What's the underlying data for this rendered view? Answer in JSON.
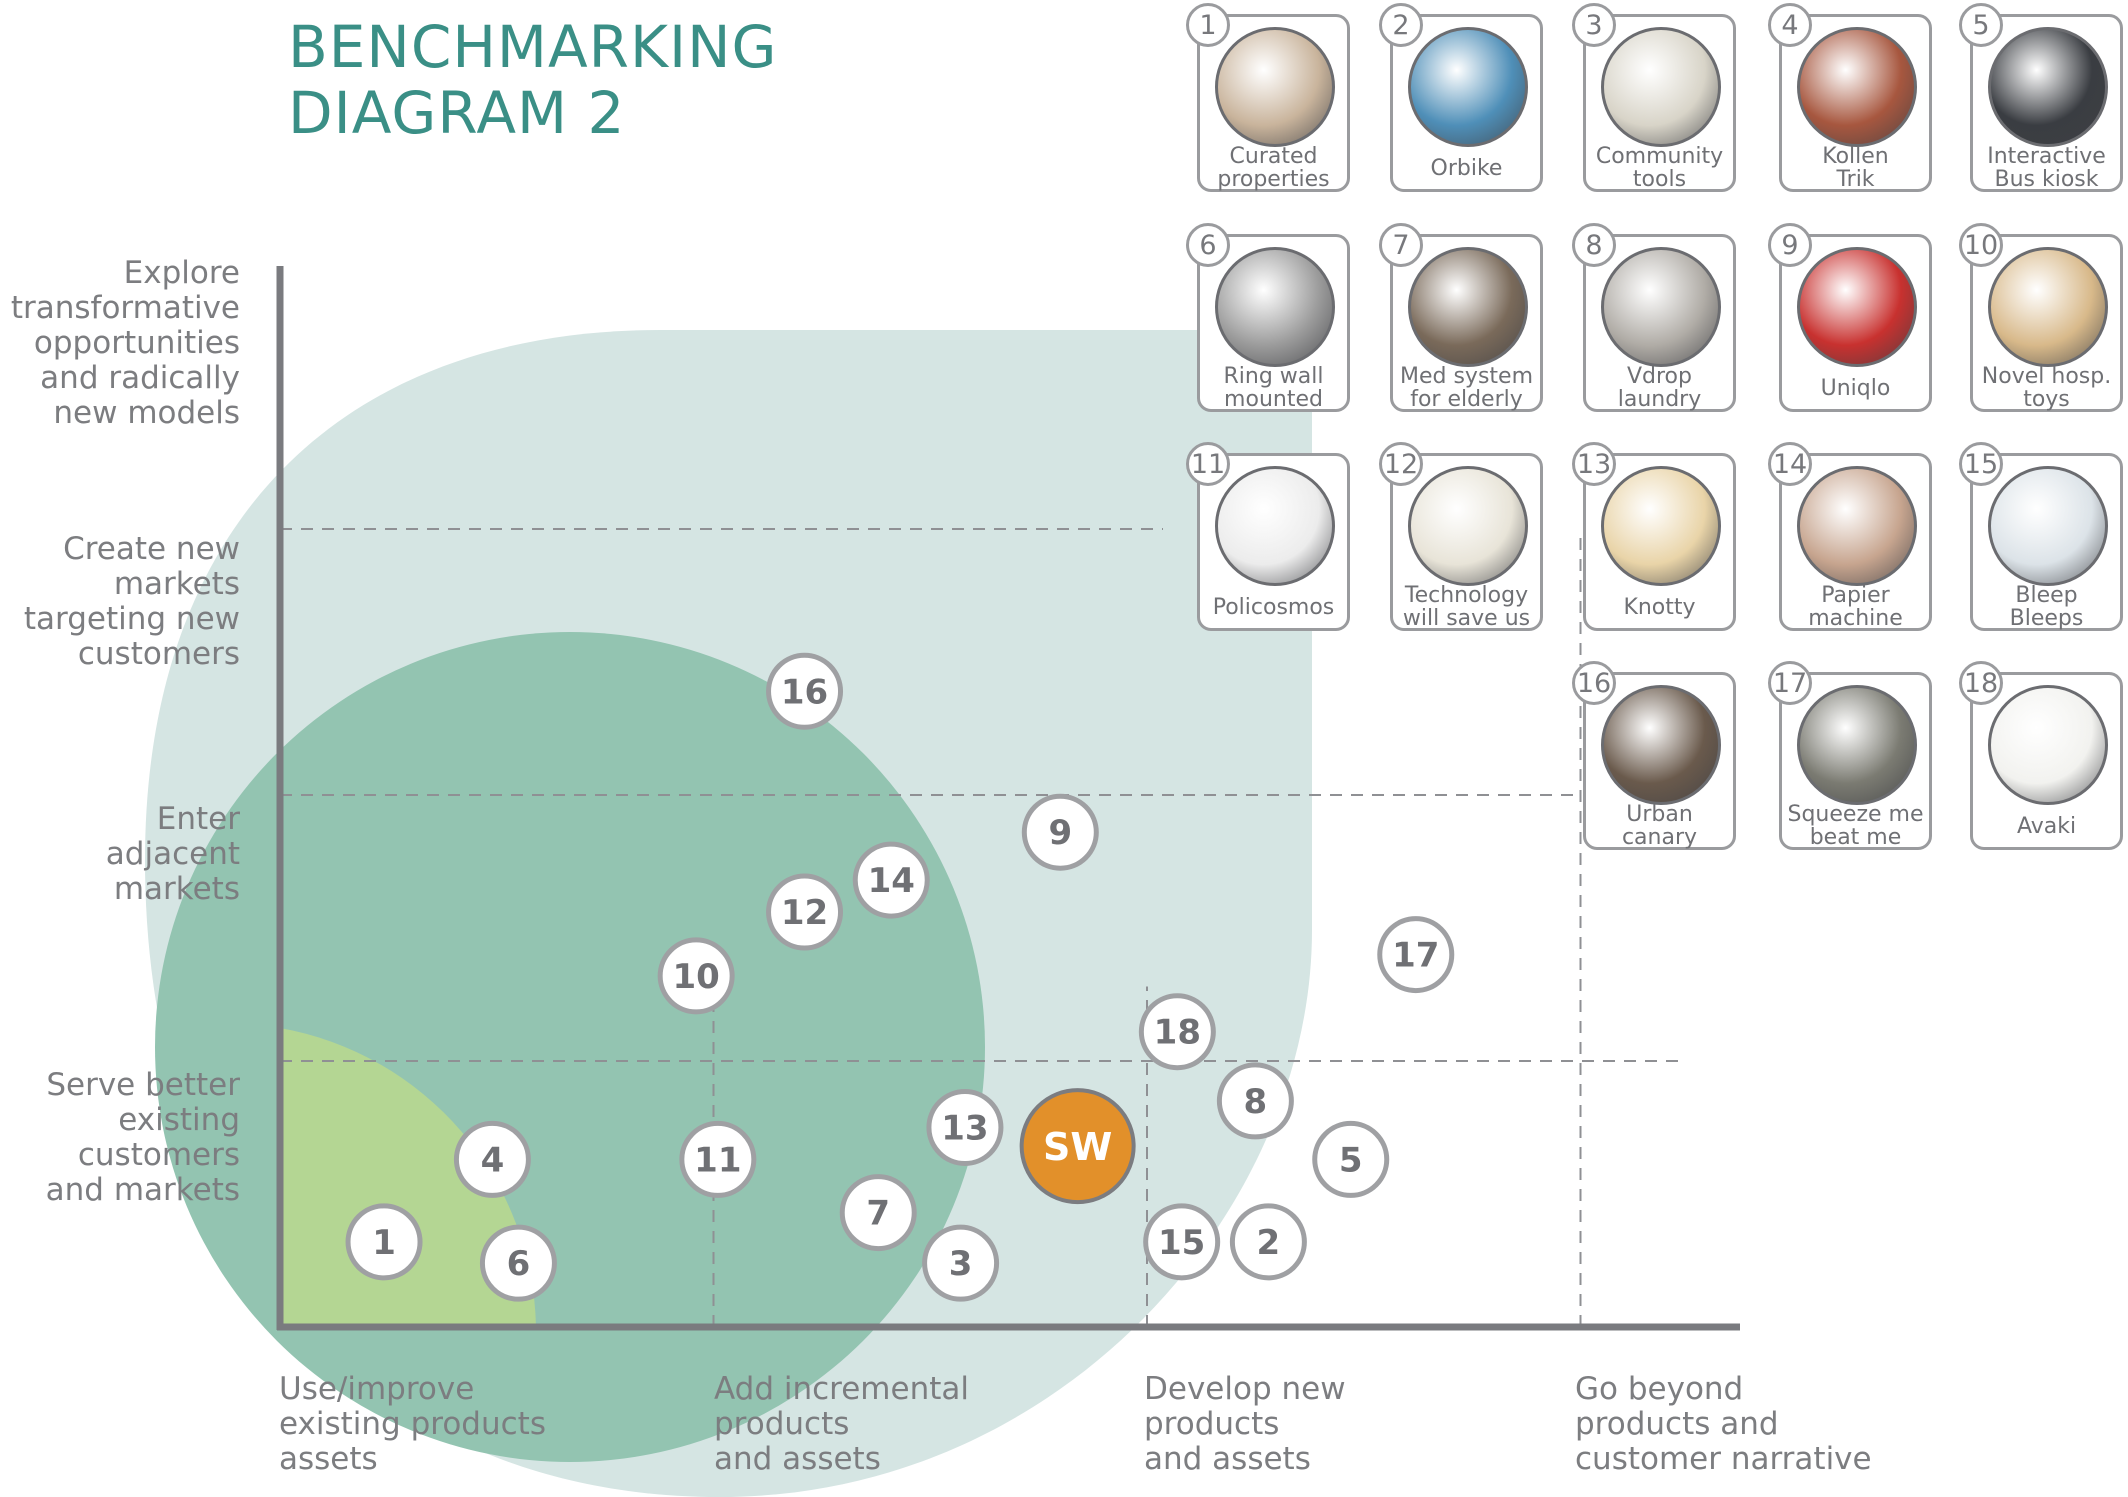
{
  "header": {
    "title_line1": "BENCHMARKING",
    "title_line2": "DIAGRAM 2"
  },
  "colors": {
    "title": "#3a8f86",
    "outer_region": "#d5e5e3",
    "middle_region": "#93c4b1",
    "inner_region": "#b4d693",
    "axis": "#7a7b7f",
    "grid": "#8f9094",
    "marker_border": "#9fa0a3",
    "marker_text": "#6f7074",
    "sw_fill": "#e2902a",
    "sw_border": "#7b7c80"
  },
  "y_axis": {
    "levels": [
      {
        "lines": [
          "Serve better",
          "existing",
          "customers",
          "and markets"
        ]
      },
      {
        "lines": [
          "Enter",
          "adjacent",
          "markets"
        ]
      },
      {
        "lines": [
          "Create new",
          "markets",
          "targeting new",
          "customers"
        ]
      },
      {
        "lines": [
          "Explore",
          "transformative",
          "opportunities",
          "and radically",
          "new models"
        ]
      }
    ]
  },
  "x_axis": {
    "levels": [
      {
        "lines": [
          "Use/improve",
          "existing products",
          "assets"
        ]
      },
      {
        "lines": [
          "Add incremental",
          "products",
          "and assets"
        ]
      },
      {
        "lines": [
          "Develop new",
          "products",
          "and assets"
        ]
      },
      {
        "lines": [
          "Go beyond",
          "products and",
          "customer narrative"
        ]
      }
    ]
  },
  "chart_data": {
    "type": "scatter",
    "x_range": [
      0,
      4
    ],
    "y_range": [
      0,
      4
    ],
    "points": [
      {
        "label": "1",
        "x": 0.24,
        "y": 0.32
      },
      {
        "label": "2",
        "x": 2.28,
        "y": 0.32
      },
      {
        "label": "3",
        "x": 1.57,
        "y": 0.24
      },
      {
        "label": "4",
        "x": 0.49,
        "y": 0.63
      },
      {
        "label": "5",
        "x": 2.47,
        "y": 0.63
      },
      {
        "label": "6",
        "x": 0.55,
        "y": 0.24
      },
      {
        "label": "7",
        "x": 1.38,
        "y": 0.43
      },
      {
        "label": "8",
        "x": 2.25,
        "y": 0.85
      },
      {
        "label": "9",
        "x": 1.8,
        "y": 1.86
      },
      {
        "label": "10",
        "x": 0.96,
        "y": 1.32
      },
      {
        "label": "11",
        "x": 1.01,
        "y": 0.63
      },
      {
        "label": "12",
        "x": 1.21,
        "y": 1.56
      },
      {
        "label": "13",
        "x": 1.58,
        "y": 0.75
      },
      {
        "label": "14",
        "x": 1.41,
        "y": 1.68
      },
      {
        "label": "15",
        "x": 2.08,
        "y": 0.32
      },
      {
        "label": "16",
        "x": 1.21,
        "y": 2.39
      },
      {
        "label": "17",
        "x": 2.62,
        "y": 1.4
      },
      {
        "label": "18",
        "x": 2.07,
        "y": 1.11
      },
      {
        "label": "SW",
        "x": 1.84,
        "y": 0.68,
        "highlight": true
      }
    ]
  },
  "cards": [
    {
      "num": "1",
      "label": "Curated\nproperties",
      "icon": "curated-properties-photo",
      "bg": "#c9b49c"
    },
    {
      "num": "2",
      "label": "Orbike",
      "icon": "orbike-photo",
      "bg": "#4f8fb8"
    },
    {
      "num": "3",
      "label": "Community\ntools",
      "icon": "community-tools-photo",
      "bg": "#d8d4c8"
    },
    {
      "num": "4",
      "label": "Kollen\nTrik",
      "icon": "kollen-trik-photo",
      "bg": "#a7573f"
    },
    {
      "num": "5",
      "label": "Interactive\nBus kiosk",
      "icon": "bus-kiosk-photo",
      "bg": "#3a3d42"
    },
    {
      "num": "6",
      "label": "Ring wall\nmounted",
      "icon": "ring-wall-photo",
      "bg": "#9c9c9c"
    },
    {
      "num": "7",
      "label": "Med system\nfor elderly",
      "icon": "med-system-photo",
      "bg": "#7a6a5a"
    },
    {
      "num": "8",
      "label": "Vdrop\nlaundry",
      "icon": "vdrop-laundry-photo",
      "bg": "#b0aca6"
    },
    {
      "num": "9",
      "label": "Uniqlo",
      "icon": "uniqlo-photo",
      "bg": "#c8312f"
    },
    {
      "num": "10",
      "label": "Novel hosp.\ntoys",
      "icon": "hospital-toys-photo",
      "bg": "#d8b98a"
    },
    {
      "num": "11",
      "label": "Policosmos",
      "icon": "policosmos-photo",
      "bg": "#ececec"
    },
    {
      "num": "12",
      "label": "Technology\nwill save us",
      "icon": "technology-photo",
      "bg": "#e8e4d8"
    },
    {
      "num": "13",
      "label": "Knotty",
      "icon": "knotty-photo",
      "bg": "#e9d4a8"
    },
    {
      "num": "14",
      "label": "Papier\nmachine",
      "icon": "papier-machine-photo",
      "bg": "#c7a58f"
    },
    {
      "num": "15",
      "label": "Bleep\nBleeps",
      "icon": "bleep-bleeps-photo",
      "bg": "#dce3e8"
    },
    {
      "num": "16",
      "label": "Urban\ncanary",
      "icon": "urban-canary-photo",
      "bg": "#6a5a4c"
    },
    {
      "num": "17",
      "label": "Squeeze me\nbeat me",
      "icon": "squeeze-me-photo",
      "bg": "#7b7b72"
    },
    {
      "num": "18",
      "label": "Avaki",
      "icon": "avaki-photo",
      "bg": "#f2f2ef"
    }
  ]
}
